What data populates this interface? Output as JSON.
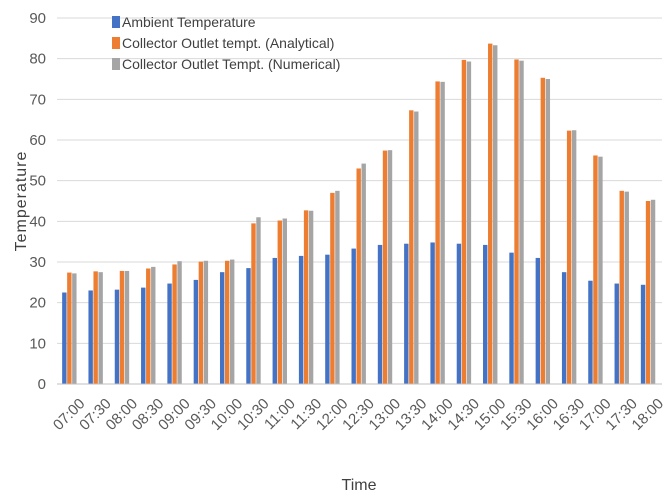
{
  "chart_data": {
    "type": "bar",
    "categories": [
      "07:00",
      "07:30",
      "08:00",
      "08:30",
      "09:00",
      "09:30",
      "10:00",
      "10:30",
      "11:00",
      "11:30",
      "12:00",
      "12:30",
      "13:00",
      "13:30",
      "14:00",
      "14:30",
      "15:00",
      "15:30",
      "16:00",
      "16:30",
      "17:00",
      "17:30",
      "18:00"
    ],
    "series": [
      {
        "name": "Ambient Temperature",
        "color": "#4472C4",
        "values": [
          22.5,
          23,
          23.2,
          23.7,
          24.7,
          25.6,
          27.5,
          28.5,
          31,
          31.5,
          31.8,
          33.3,
          34.2,
          34.5,
          34.8,
          34.5,
          34.2,
          32.3,
          31,
          27.5,
          25.4,
          24.7,
          24.4
        ]
      },
      {
        "name": "Collector Outlet tempt. (Analytical)",
        "color": "#ED7D31",
        "values": [
          27.4,
          27.7,
          27.8,
          28.4,
          29.4,
          30.1,
          30.3,
          39.5,
          40.2,
          42.7,
          47,
          53,
          57.4,
          67.3,
          74.4,
          79.7,
          83.7,
          79.8,
          75.3,
          62.3,
          56.2,
          47.5,
          45
        ]
      },
      {
        "name": "Collector Outlet Tempt. (Numerical)",
        "color": "#A5A5A5",
        "values": [
          27.2,
          27.5,
          27.8,
          28.8,
          30.2,
          30.3,
          30.6,
          41,
          40.7,
          42.6,
          47.5,
          54.2,
          57.5,
          67,
          74.3,
          79.3,
          83.3,
          79.5,
          75,
          62.4,
          55.9,
          47.3,
          45.3
        ]
      }
    ],
    "xlabel": "Time",
    "ylabel": "Temperature",
    "ylim": [
      0,
      90
    ],
    "yticks": [
      0,
      10,
      20,
      30,
      40,
      50,
      60,
      70,
      80,
      90
    ],
    "grid": true,
    "gridColor": "#d9d9d9",
    "legend": "top-left"
  }
}
